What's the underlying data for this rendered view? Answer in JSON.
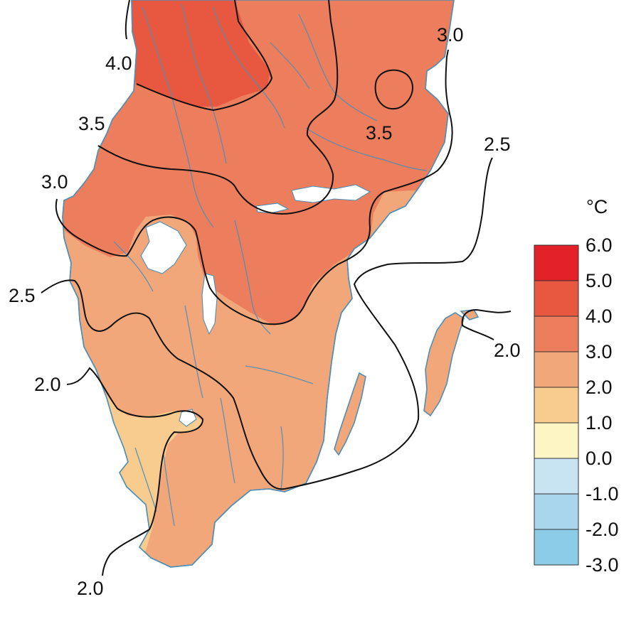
{
  "map": {
    "zone_colors": {
      "4-5": "#e8573f",
      "3-4": "#ec7d5d",
      "2-3": "#f2a77b",
      "1-2": "#f8cc8e"
    },
    "contour_labels": {
      "c40": "4.0",
      "c35a": "3.5",
      "c35b": "3.5",
      "c30a": "3.0",
      "c30b": "3.0",
      "c25a": "2.5",
      "c25b": "2.5",
      "c20a": "2.0",
      "c20b": "2.0",
      "c20c": "2.0"
    }
  },
  "legend": {
    "unit": "°C",
    "ticks": [
      "6.0",
      "5.0",
      "4.0",
      "3.0",
      "2.0",
      "1.0",
      "0.0",
      "-1.0",
      "-2.0",
      "-3.0"
    ],
    "bins": [
      {
        "from": 5.0,
        "to": 6.0,
        "color": "#e32129"
      },
      {
        "from": 4.0,
        "to": 5.0,
        "color": "#e8573f"
      },
      {
        "from": 3.0,
        "to": 4.0,
        "color": "#ec7d5d"
      },
      {
        "from": 2.0,
        "to": 3.0,
        "color": "#f2a77b"
      },
      {
        "from": 1.0,
        "to": 2.0,
        "color": "#f8cc8e"
      },
      {
        "from": 0.0,
        "to": 1.0,
        "color": "#fdf5c4"
      },
      {
        "from": -1.0,
        "to": 0.0,
        "color": "#c8e3f2"
      },
      {
        "from": -2.0,
        "to": -1.0,
        "color": "#aad6ed"
      },
      {
        "from": -3.0,
        "to": -2.0,
        "color": "#8ccce9"
      }
    ]
  }
}
